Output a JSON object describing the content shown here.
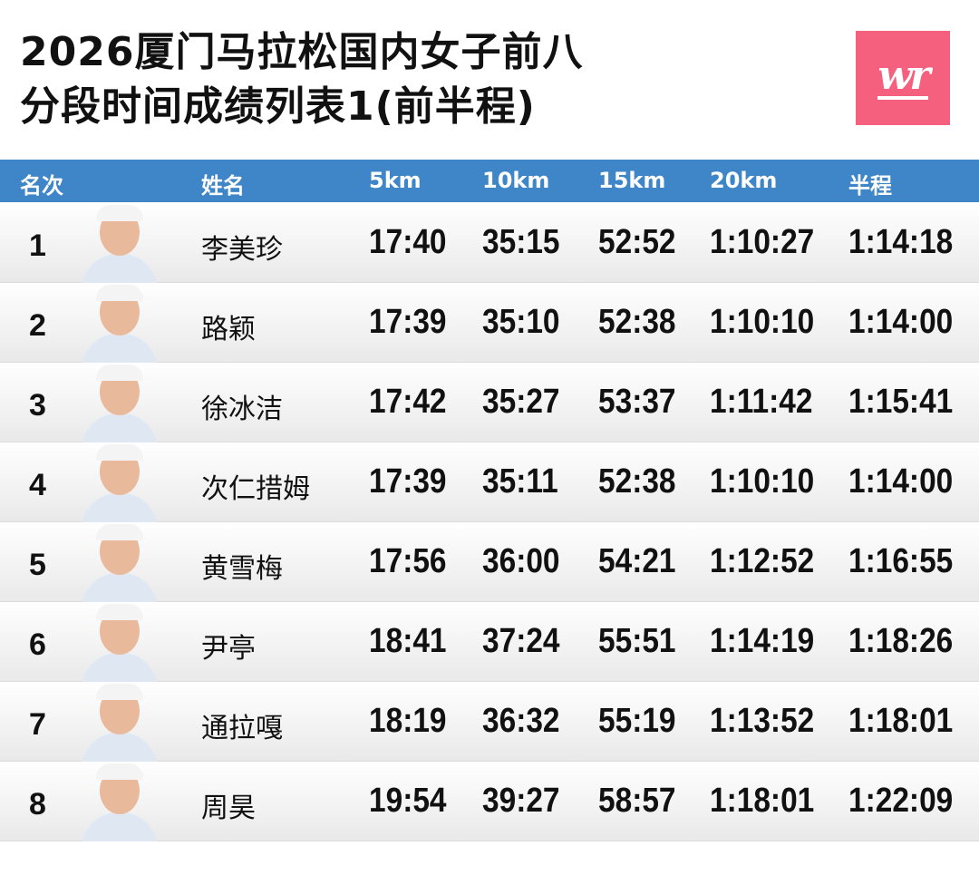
{
  "title": {
    "line1": "2026厦门马拉松国内女子前八",
    "line2": "分段时间成绩列表1(前半程)"
  },
  "logo": {
    "text": "wr",
    "color": "#f5607e"
  },
  "header_color": "#3f86c9",
  "columns": [
    "名次",
    "姓名",
    "5km",
    "10km",
    "15km",
    "20km",
    "半程"
  ],
  "rows": [
    {
      "rank": "1",
      "name": "李美珍",
      "t5": "17:40",
      "t10": "35:15",
      "t15": "52:52",
      "t20": "1:10:27",
      "half": "1:14:18"
    },
    {
      "rank": "2",
      "name": "路颖",
      "t5": "17:39",
      "t10": "35:10",
      "t15": "52:38",
      "t20": "1:10:10",
      "half": "1:14:00"
    },
    {
      "rank": "3",
      "name": "徐冰洁",
      "t5": "17:42",
      "t10": "35:27",
      "t15": "53:37",
      "t20": "1:11:42",
      "half": "1:15:41"
    },
    {
      "rank": "4",
      "name": "次仁措姆",
      "t5": "17:39",
      "t10": "35:11",
      "t15": "52:38",
      "t20": "1:10:10",
      "half": "1:14:00"
    },
    {
      "rank": "5",
      "name": "黄雪梅",
      "t5": "17:56",
      "t10": "36:00",
      "t15": "54:21",
      "t20": "1:12:52",
      "half": "1:16:55"
    },
    {
      "rank": "6",
      "name": "尹亭",
      "t5": "18:41",
      "t10": "37:24",
      "t15": "55:51",
      "t20": "1:14:19",
      "half": "1:18:26"
    },
    {
      "rank": "7",
      "name": "通拉嘎",
      "t5": "18:19",
      "t10": "36:32",
      "t15": "55:19",
      "t20": "1:13:52",
      "half": "1:18:01"
    },
    {
      "rank": "8",
      "name": "周昊",
      "t5": "19:54",
      "t10": "39:27",
      "t15": "58:57",
      "t20": "1:18:01",
      "half": "1:22:09"
    }
  ]
}
